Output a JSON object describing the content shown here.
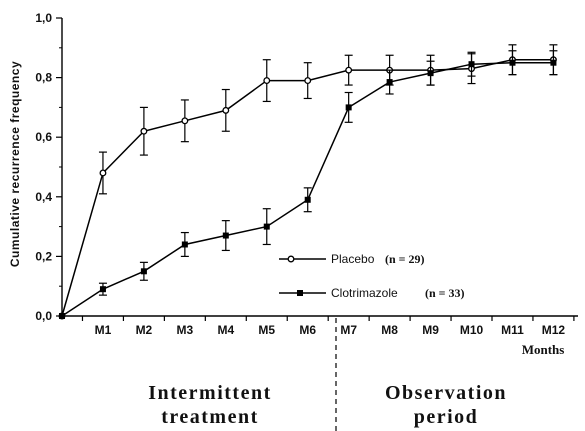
{
  "chart_data": {
    "type": "line",
    "ylabel": "Cumulative recurrence frequency",
    "ylim": [
      0,
      1
    ],
    "y_ticks": [
      "0,0",
      "0,2",
      "0,4",
      "0,6",
      "0,8",
      "1,0"
    ],
    "y_tick_values": [
      0,
      0.2,
      0.4,
      0.6,
      0.8,
      1.0
    ],
    "x_tick_labels": [
      "M1",
      "M2",
      "M3",
      "M4",
      "M5",
      "M6",
      "M7",
      "M8",
      "M9",
      "M10",
      "M11",
      "M12"
    ],
    "x_unit_label": "Months",
    "x": [
      0,
      1,
      2,
      3,
      4,
      5,
      6,
      7,
      8,
      9,
      10,
      11,
      12
    ],
    "series": [
      {
        "name": "Placebo",
        "n_label": "(n  =  29)",
        "marker": "open-circle",
        "values": [
          0.0,
          0.48,
          0.62,
          0.655,
          0.69,
          0.79,
          0.79,
          0.825,
          0.825,
          0.825,
          0.83,
          0.86,
          0.86
        ],
        "errors": [
          0,
          0.07,
          0.08,
          0.07,
          0.07,
          0.07,
          0.06,
          0.05,
          0.05,
          0.05,
          0.05,
          0.05,
          0.05
        ]
      },
      {
        "name": "Clotrimazole",
        "n_label": "(n  =  33)",
        "marker": "filled-square",
        "values": [
          0.0,
          0.09,
          0.15,
          0.24,
          0.27,
          0.3,
          0.39,
          0.7,
          0.785,
          0.815,
          0.845,
          0.85,
          0.85
        ],
        "errors": [
          0,
          0.02,
          0.03,
          0.04,
          0.05,
          0.06,
          0.04,
          0.05,
          0.04,
          0.04,
          0.04,
          0.04,
          0.04
        ]
      }
    ],
    "divider_between": [
      "M6",
      "M7"
    ],
    "periods": [
      {
        "line1": "Intermittent",
        "line2": "treatment"
      },
      {
        "line1": "Observation",
        "line2": "period"
      }
    ],
    "legend_position": "lower-right inside plot",
    "grid": false
  }
}
